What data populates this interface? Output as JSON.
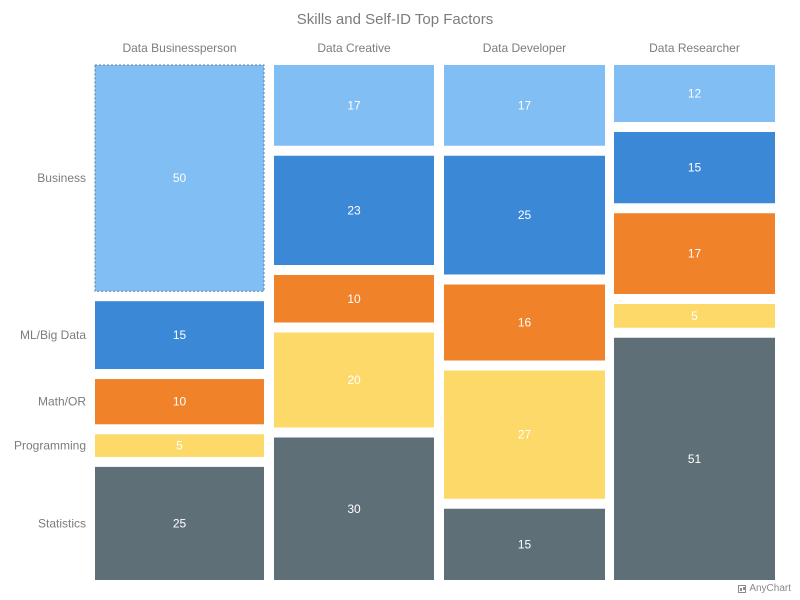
{
  "chart_data": {
    "type": "mosaic",
    "title": "Skills and Self-ID Top Factors",
    "columns": [
      "Data Businessperson",
      "Data Creative",
      "Data Developer",
      "Data Researcher"
    ],
    "rows": [
      "Business",
      "ML/Big Data",
      "Math/OR",
      "Programming",
      "Statistics"
    ],
    "row_labels_from_column": "Data Businessperson",
    "values": [
      [
        50,
        15,
        10,
        5,
        25
      ],
      [
        17,
        23,
        10,
        20,
        30
      ],
      [
        17,
        25,
        16,
        27,
        15
      ],
      [
        12,
        15,
        17,
        5,
        51
      ]
    ],
    "colors": [
      "#80bef4",
      "#3b88d6",
      "#f0822a",
      "#fdd96a",
      "#5f6f78"
    ],
    "label_colors": [
      "#ffffff",
      "#ffffff",
      "#ffffff",
      "#ffffff",
      "#ffffff"
    ],
    "highlighted": {
      "column": "Data Businessperson",
      "row": "Business"
    }
  },
  "credits": {
    "text": "AnyChart"
  }
}
